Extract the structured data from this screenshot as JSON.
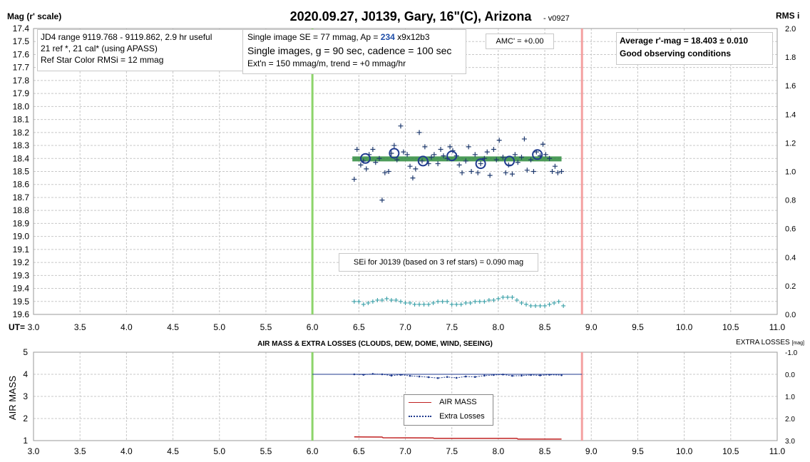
{
  "chart_data": [
    {
      "type": "scatter",
      "title": "2020.09.27, J0139, Gary, 16\"(C), Arizona",
      "version": "- v0927",
      "ylabel_left": "Mag (r' scale)",
      "ylabel_right": "RMS i",
      "xlabel": "UT=",
      "xlim": [
        3.0,
        11.0
      ],
      "x_ticks": [
        "3.0",
        "3.5",
        "4.0",
        "4.5",
        "5.0",
        "5.5",
        "6.0",
        "6.5",
        "7.0",
        "7.5",
        "8.0",
        "8.5",
        "9.0",
        "9.5",
        "10.0",
        "10.5",
        "11.0"
      ],
      "ylim_left": [
        17.4,
        19.6
      ],
      "y_ticks_left": [
        "17.4",
        "17.5",
        "17.6",
        "17.7",
        "17.8",
        "17.9",
        "18.0",
        "18.1",
        "18.2",
        "18.3",
        "18.4",
        "18.5",
        "18.6",
        "18.7",
        "18.8",
        "18.9",
        "19.0",
        "19.1",
        "19.2",
        "19.3",
        "19.4",
        "19.5",
        "19.6"
      ],
      "ylim_right": [
        0.0,
        2.0
      ],
      "y_ticks_right": [
        "2.0",
        "1.8",
        "1.6",
        "1.4",
        "1.2",
        "1.0",
        "0.8",
        "0.6",
        "0.4",
        "0.2",
        "0.0"
      ],
      "grid": true,
      "vertical_lines": [
        {
          "x": 6.0,
          "color": "#8cd46a"
        },
        {
          "x": 8.9,
          "color": "#f4a0a0"
        }
      ],
      "average_mag": 18.403,
      "average_band": {
        "x": [
          6.43,
          8.68
        ],
        "y": 18.403,
        "color": "#2e8b3e"
      },
      "series": [
        {
          "kind": "single_images",
          "marker": "+",
          "color": "#1f3a6e",
          "points": [
            [
              6.45,
              18.56
            ],
            [
              6.48,
              18.33
            ],
            [
              6.52,
              18.45
            ],
            [
              6.55,
              18.42
            ],
            [
              6.58,
              18.48
            ],
            [
              6.61,
              18.37
            ],
            [
              6.65,
              18.33
            ],
            [
              6.68,
              18.43
            ],
            [
              6.72,
              18.4
            ],
            [
              6.75,
              18.72
            ],
            [
              6.78,
              18.51
            ],
            [
              6.82,
              18.5
            ],
            [
              6.85,
              18.36
            ],
            [
              6.88,
              18.3
            ],
            [
              6.91,
              18.41
            ],
            [
              6.95,
              18.15
            ],
            [
              6.98,
              18.35
            ],
            [
              7.02,
              18.37
            ],
            [
              7.05,
              18.46
            ],
            [
              7.08,
              18.55
            ],
            [
              7.11,
              18.48
            ],
            [
              7.15,
              18.2
            ],
            [
              7.18,
              18.42
            ],
            [
              7.21,
              18.31
            ],
            [
              7.25,
              18.44
            ],
            [
              7.28,
              18.39
            ],
            [
              7.31,
              18.37
            ],
            [
              7.35,
              18.44
            ],
            [
              7.38,
              18.33
            ],
            [
              7.41,
              18.38
            ],
            [
              7.45,
              18.4
            ],
            [
              7.48,
              18.31
            ],
            [
              7.51,
              18.34
            ],
            [
              7.55,
              18.38
            ],
            [
              7.58,
              18.45
            ],
            [
              7.61,
              18.51
            ],
            [
              7.65,
              18.42
            ],
            [
              7.68,
              18.31
            ],
            [
              7.71,
              18.5
            ],
            [
              7.75,
              18.37
            ],
            [
              7.78,
              18.51
            ],
            [
              7.81,
              18.44
            ],
            [
              7.85,
              18.4
            ],
            [
              7.88,
              18.35
            ],
            [
              7.91,
              18.53
            ],
            [
              7.95,
              18.33
            ],
            [
              7.98,
              18.41
            ],
            [
              8.01,
              18.26
            ],
            [
              8.05,
              18.39
            ],
            [
              8.08,
              18.51
            ],
            [
              8.11,
              18.45
            ],
            [
              8.15,
              18.52
            ],
            [
              8.18,
              18.37
            ],
            [
              8.21,
              18.43
            ],
            [
              8.25,
              18.39
            ],
            [
              8.28,
              18.25
            ],
            [
              8.31,
              18.49
            ],
            [
              8.35,
              18.41
            ],
            [
              8.38,
              18.5
            ],
            [
              8.41,
              18.35
            ],
            [
              8.45,
              18.38
            ],
            [
              8.48,
              18.29
            ],
            [
              8.51,
              18.37
            ],
            [
              8.55,
              18.4
            ],
            [
              8.58,
              18.5
            ],
            [
              8.61,
              18.46
            ],
            [
              8.64,
              18.51
            ],
            [
              8.68,
              18.5
            ]
          ]
        },
        {
          "kind": "averages",
          "marker": "circle",
          "color": "#1f3a8e",
          "points": [
            [
              6.57,
              18.4
            ],
            [
              6.88,
              18.36
            ],
            [
              7.19,
              18.42
            ],
            [
              7.5,
              18.38
            ],
            [
              7.81,
              18.44
            ],
            [
              8.12,
              18.42
            ],
            [
              8.42,
              18.37
            ]
          ]
        },
        {
          "kind": "rms",
          "axis": "right",
          "marker": "+",
          "color": "#3aa0a8",
          "points": [
            [
              6.45,
              0.09
            ],
            [
              6.5,
              0.09
            ],
            [
              6.55,
              0.07
            ],
            [
              6.6,
              0.08
            ],
            [
              6.65,
              0.09
            ],
            [
              6.7,
              0.1
            ],
            [
              6.75,
              0.1
            ],
            [
              6.8,
              0.11
            ],
            [
              6.85,
              0.1
            ],
            [
              6.9,
              0.1
            ],
            [
              6.95,
              0.09
            ],
            [
              7.0,
              0.08
            ],
            [
              7.05,
              0.08
            ],
            [
              7.1,
              0.07
            ],
            [
              7.15,
              0.07
            ],
            [
              7.2,
              0.07
            ],
            [
              7.25,
              0.07
            ],
            [
              7.3,
              0.08
            ],
            [
              7.35,
              0.09
            ],
            [
              7.4,
              0.09
            ],
            [
              7.45,
              0.09
            ],
            [
              7.5,
              0.07
            ],
            [
              7.55,
              0.07
            ],
            [
              7.6,
              0.07
            ],
            [
              7.65,
              0.08
            ],
            [
              7.7,
              0.08
            ],
            [
              7.75,
              0.09
            ],
            [
              7.8,
              0.09
            ],
            [
              7.85,
              0.09
            ],
            [
              7.9,
              0.1
            ],
            [
              7.95,
              0.1
            ],
            [
              8.0,
              0.11
            ],
            [
              8.05,
              0.12
            ],
            [
              8.1,
              0.12
            ],
            [
              8.15,
              0.12
            ],
            [
              8.2,
              0.1
            ],
            [
              8.25,
              0.08
            ],
            [
              8.3,
              0.07
            ],
            [
              8.35,
              0.06
            ],
            [
              8.4,
              0.06
            ],
            [
              8.45,
              0.06
            ],
            [
              8.5,
              0.06
            ],
            [
              8.55,
              0.07
            ],
            [
              8.6,
              0.08
            ],
            [
              8.65,
              0.09
            ],
            [
              8.7,
              0.06
            ]
          ]
        }
      ],
      "annotations": {
        "info_lines": [
          "JD4 range 9119.768 - 9119.862, 2.9 hr useful",
          "21 ref *, 21 cal* (using APASS)",
          "Ref Star Color RMSi = 12 mmag"
        ],
        "se_line1_prefix": "Single image SE = 77 mmag, Ap = ",
        "se_line1_ap": "234",
        "se_line1_suffix": " x9x12b3",
        "se_line2": "Single images, g = 90 sec, cadence = 100 sec",
        "se_line3": "Ext'n = 150 mmag/m, trend = +0 mmag/hr",
        "amc": "AMC' = +0.00",
        "avg_line1": "Average r'-mag =  18.403 ± 0.010",
        "avg_line2": "Good observing conditions",
        "sei": "SEi for J0139 (based on 3 ref stars) = 0.090 mag"
      }
    },
    {
      "type": "line",
      "title": "AIR MASS & EXTRA LOSSES (CLOUDS, DEW, DOME, WIND, SEEING)",
      "ylabel_left": "AIR MASS",
      "ylabel_right": "EXTRA LOSSES",
      "ylabel_right_unit": "[mag]",
      "xlim": [
        3.0,
        11.0
      ],
      "x_ticks": [
        "3.0",
        "3.5",
        "4.0",
        "4.5",
        "5.0",
        "5.5",
        "6.0",
        "6.5",
        "7.0",
        "7.5",
        "8.0",
        "8.5",
        "9.0",
        "9.5",
        "10.0",
        "10.5",
        "11.0"
      ],
      "ylim_left": [
        1,
        5
      ],
      "y_ticks_left": [
        "5",
        "4",
        "3",
        "2",
        "1"
      ],
      "ylim_right": [
        3.0,
        -1.0
      ],
      "y_ticks_right": [
        "-1.0",
        "0.0",
        "1.0",
        "2.0",
        "3.0"
      ],
      "grid": true,
      "vertical_lines": [
        {
          "x": 6.0,
          "color": "#8cd46a"
        },
        {
          "x": 8.9,
          "color": "#f4a0a0"
        }
      ],
      "legend": {
        "position": "center",
        "entries": [
          "AIR MASS",
          "Extra Losses"
        ]
      },
      "series": [
        {
          "name": "AIR MASS",
          "color": "#c02020",
          "axis": "left",
          "points": [
            [
              6.45,
              1.17
            ],
            [
              6.75,
              1.16
            ],
            [
              6.76,
              1.13
            ],
            [
              7.3,
              1.12
            ],
            [
              7.31,
              1.1
            ],
            [
              8.2,
              1.1
            ],
            [
              8.21,
              1.07
            ],
            [
              8.68,
              1.07
            ]
          ]
        },
        {
          "name": "Extra Losses",
          "color": "#1f3a8e",
          "axis": "right",
          "points": [
            [
              6.45,
              0.0
            ],
            [
              6.55,
              0.02
            ],
            [
              6.65,
              -0.02
            ],
            [
              6.75,
              0.0
            ],
            [
              6.85,
              0.06
            ],
            [
              6.95,
              0.02
            ],
            [
              7.05,
              0.07
            ],
            [
              7.15,
              0.1
            ],
            [
              7.25,
              0.13
            ],
            [
              7.35,
              0.17
            ],
            [
              7.45,
              0.12
            ],
            [
              7.55,
              0.16
            ],
            [
              7.65,
              0.1
            ],
            [
              7.75,
              0.12
            ],
            [
              7.85,
              0.06
            ],
            [
              7.95,
              0.03
            ],
            [
              8.05,
              0.01
            ],
            [
              8.15,
              0.07
            ],
            [
              8.25,
              0.06
            ],
            [
              8.35,
              0.03
            ],
            [
              8.45,
              0.05
            ],
            [
              8.55,
              0.02
            ],
            [
              8.68,
              0.04
            ]
          ]
        },
        {
          "kind": "baseline",
          "color": "#1f3a8e",
          "axis": "right",
          "points": [
            [
              6.0,
              0.0
            ],
            [
              8.9,
              0.0
            ]
          ]
        }
      ]
    }
  ]
}
